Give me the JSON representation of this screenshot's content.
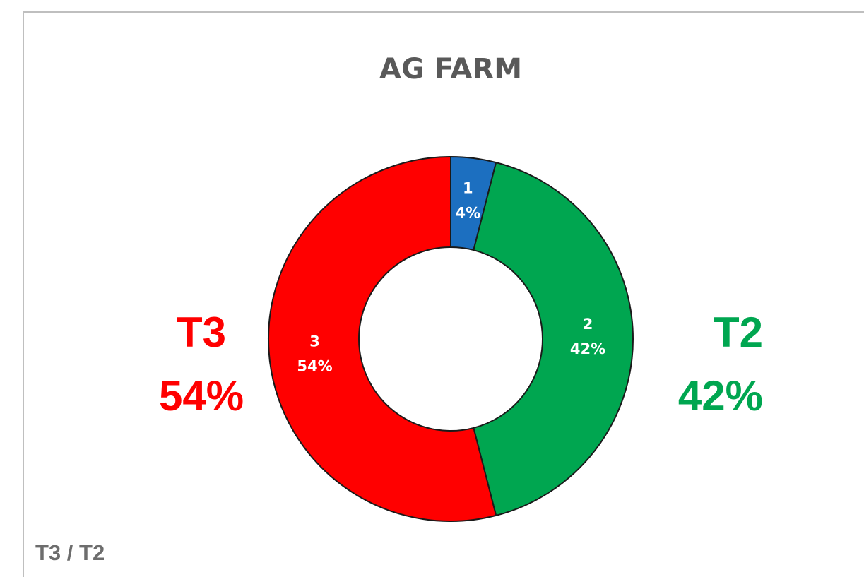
{
  "chart_data": {
    "type": "donut",
    "title": "AG FARM",
    "categories": [
      "1",
      "2",
      "3"
    ],
    "values": [
      4,
      42,
      54
    ],
    "value_labels": [
      "4%",
      "42%",
      "54%"
    ],
    "colors": [
      "#1c6fc0",
      "#00a650",
      "#ff0000"
    ],
    "annotations": [
      {
        "text": "T3",
        "color": "#ff0000"
      },
      {
        "text": "54%",
        "color": "#ff0000"
      },
      {
        "text": "T2",
        "color": "#00a650"
      },
      {
        "text": "42%",
        "color": "#00a650"
      },
      {
        "text": "T3 / T2",
        "color": "#6d6d6d"
      }
    ]
  }
}
